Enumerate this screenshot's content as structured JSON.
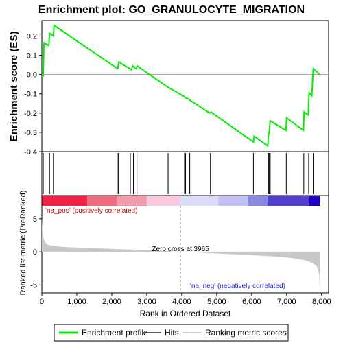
{
  "chart_data": {
    "type": "line",
    "title": "Enrichment plot: GO_GRANULOCYTE_MIGRATION",
    "xlabel": "Rank in Ordered Dataset",
    "x_ticks": [
      0,
      1000,
      2000,
      3000,
      4000,
      5000,
      6000,
      7000,
      8000
    ],
    "xlim": [
      0,
      8200
    ],
    "enrichment_panel": {
      "ylabel": "Enrichment score (ES)",
      "ylim": [
        -0.4,
        0.28
      ],
      "y_ticks": [
        -0.4,
        -0.3,
        -0.2,
        -0.1,
        0.0,
        0.1,
        0.2
      ],
      "series": {
        "name": "Enrichment profile",
        "color": "#00ee00",
        "x": [
          0,
          40,
          60,
          200,
          220,
          330,
          350,
          2170,
          2200,
          2520,
          2560,
          2600,
          2650,
          2700,
          2730,
          2800,
          3600,
          4080,
          4100,
          4180,
          4250,
          4800,
          4840,
          6050,
          6070,
          6460,
          6480,
          6500,
          6520,
          6530,
          6980,
          7000,
          7480,
          7500,
          7620,
          7640,
          7720,
          7760,
          7950
        ],
        "y": [
          0.0,
          -0.005,
          0.165,
          0.15,
          0.215,
          0.2,
          0.255,
          0.03,
          0.065,
          0.03,
          0.025,
          0.045,
          0.035,
          0.03,
          0.045,
          0.035,
          -0.065,
          -0.115,
          -0.12,
          -0.125,
          -0.135,
          -0.2,
          -0.195,
          -0.35,
          -0.32,
          -0.37,
          -0.32,
          -0.3,
          -0.26,
          -0.24,
          -0.29,
          -0.225,
          -0.29,
          -0.195,
          -0.21,
          -0.095,
          -0.11,
          0.03,
          0.0
        ]
      }
    },
    "hits": {
      "name": "Hits",
      "ranks": [
        40,
        220,
        330,
        2180,
        2200,
        2530,
        2620,
        2720,
        3610,
        4080,
        4110,
        4230,
        4820,
        6050,
        6470,
        6490,
        6510,
        6530,
        6990,
        7490,
        7630,
        7760
      ]
    },
    "color_bar": {
      "segments": [
        {
          "from": 0,
          "to": 1300,
          "color": "#ee2244"
        },
        {
          "from": 1300,
          "to": 2150,
          "color": "#f06a80"
        },
        {
          "from": 2150,
          "to": 3000,
          "color": "#f39aaa"
        },
        {
          "from": 3000,
          "to": 3950,
          "color": "#f8c8e0"
        },
        {
          "from": 3950,
          "to": 5050,
          "color": "#dcdcf8"
        },
        {
          "from": 5050,
          "to": 5900,
          "color": "#c0c0f2"
        },
        {
          "from": 5900,
          "to": 6450,
          "color": "#8888e0"
        },
        {
          "from": 6450,
          "to": 7650,
          "color": "#5040d0"
        },
        {
          "from": 7650,
          "to": 7950,
          "color": "#2000c0"
        }
      ]
    },
    "ranked_panel": {
      "ylabel": "Ranked list metric (PreRanked)",
      "ylim": [
        -6.2,
        8.5
      ],
      "y_ticks": [
        -5,
        0,
        5
      ],
      "series": {
        "name": "Ranking metric scores",
        "color": "#c8c8c8",
        "x": [
          0,
          10,
          30,
          60,
          100,
          160,
          250,
          400,
          600,
          1000,
          1500,
          2000,
          2500,
          3000,
          3500,
          3965,
          4500,
          5000,
          5500,
          6000,
          6500,
          7000,
          7300,
          7500,
          7650,
          7750,
          7850,
          7900,
          7930,
          7950
        ],
        "y": [
          5.0,
          3.5,
          2.5,
          1.8,
          1.4,
          1.1,
          0.95,
          0.85,
          0.75,
          0.65,
          0.55,
          0.45,
          0.35,
          0.25,
          0.12,
          0.0,
          -0.12,
          -0.25,
          -0.38,
          -0.5,
          -0.65,
          -0.85,
          -1.05,
          -1.25,
          -1.5,
          -1.75,
          -2.1,
          -2.6,
          -3.5,
          -6.0
        ]
      },
      "zero_cross_label": "Zero cross at 3965",
      "zero_cross_rank": 3965,
      "pos_label": "'na_pos' (positively correlated)",
      "neg_label": "'na_neg' (negatively correlated)"
    },
    "legend": [
      {
        "label": "Enrichment profile",
        "color": "#00ee00"
      },
      {
        "label": "Hits",
        "color": "#555555"
      },
      {
        "label": "Ranking metric scores",
        "color": "#c8c8c8"
      }
    ]
  }
}
